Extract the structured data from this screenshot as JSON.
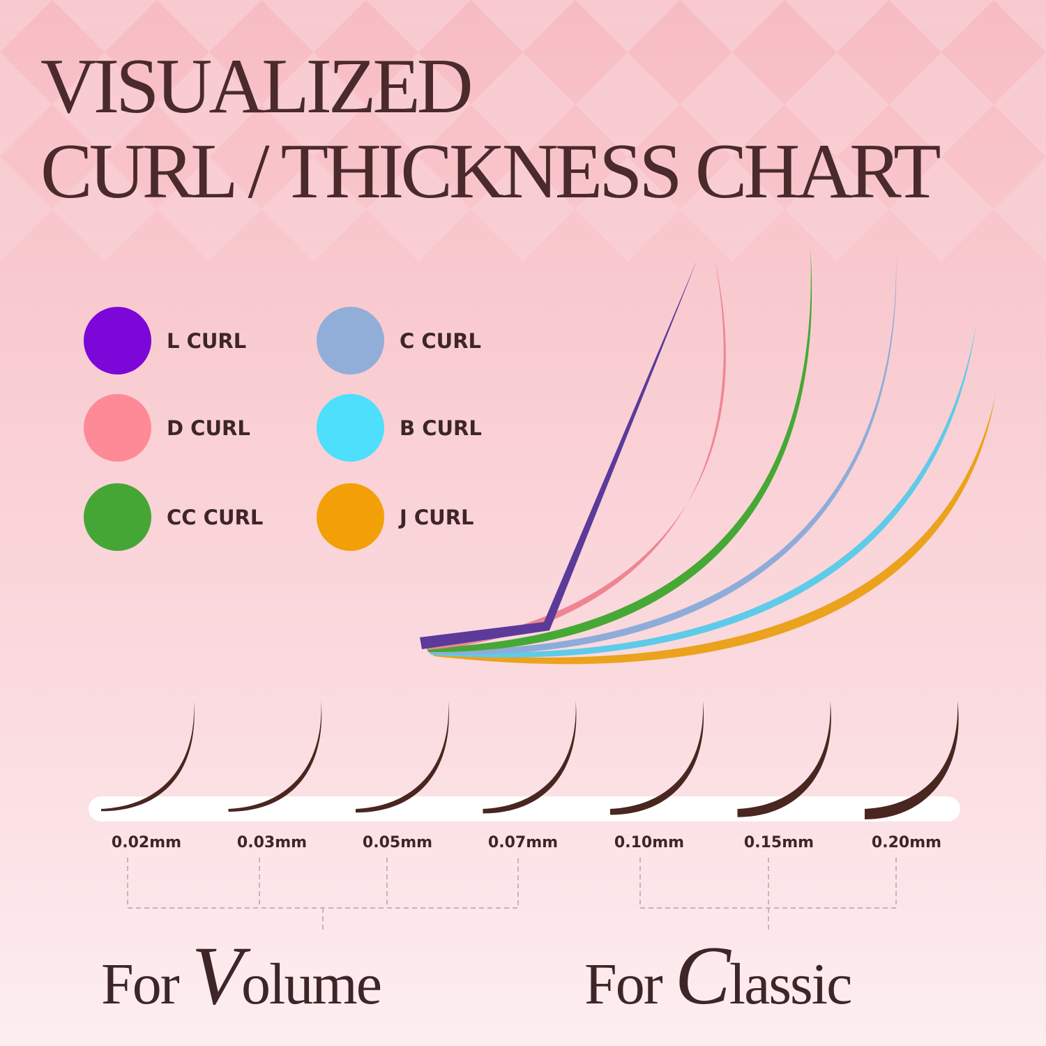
{
  "title": {
    "line1": "VISUALIZED",
    "line2": "CURL / THICKNESS CHART"
  },
  "colors": {
    "text": "#3d2528",
    "title": "#4a2a2c",
    "lash": "#4a2620"
  },
  "curls": [
    {
      "label": "L CURL",
      "color": "#7d07d8",
      "line_color": "#5b3a9a"
    },
    {
      "label": "D CURL",
      "color": "#fd8a96",
      "line_color": "#ee8592"
    },
    {
      "label": "CC CURL",
      "color": "#45a636",
      "line_color": "#46a835"
    },
    {
      "label": "C CURL",
      "color": "#91aed9",
      "line_color": "#8eacd9"
    },
    {
      "label": "B CURL",
      "color": "#4ddffc",
      "line_color": "#5ecbe8"
    },
    {
      "label": "J CURL",
      "color": "#f3a008",
      "line_color": "#eba21c"
    }
  ],
  "thickness": [
    {
      "label": "0.02mm",
      "value": 0.02
    },
    {
      "label": "0.03mm",
      "value": 0.03
    },
    {
      "label": "0.05mm",
      "value": 0.05
    },
    {
      "label": "0.07mm",
      "value": 0.07
    },
    {
      "label": "0.10mm",
      "value": 0.1
    },
    {
      "label": "0.15mm",
      "value": 0.15
    },
    {
      "label": "0.20mm",
      "value": 0.2
    }
  ],
  "groups": {
    "volume": {
      "prefix": "For",
      "initial": "V",
      "rest": "olume"
    },
    "classic": {
      "prefix": "For",
      "initial": "C",
      "rest": "lassic"
    }
  }
}
